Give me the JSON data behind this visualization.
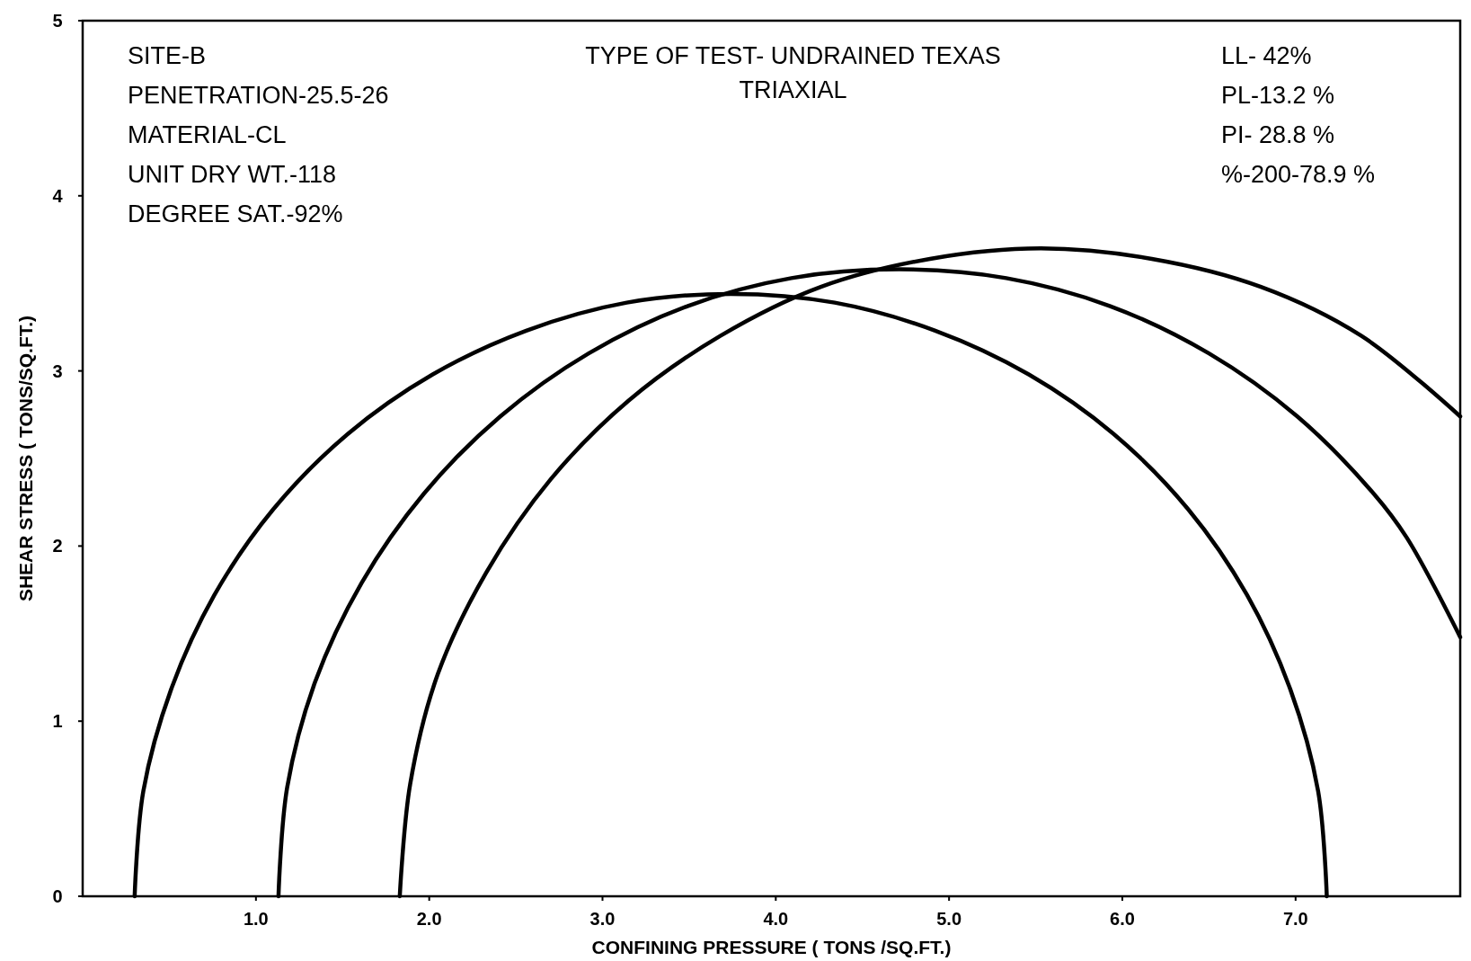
{
  "chart_data": {
    "type": "line",
    "title": "TYPE OF TEST- UNDRAINED TEXAS TRIAXIAL",
    "xlabel": "CONFINING PRESSURE ( TONS /SQ.FT.)",
    "ylabel": "SHEAR STRESS ( TONS/SQ.FT.)",
    "annotations": [
      "SITE-B",
      "PENETRATION-25.5-26",
      "MATERIAL-CL",
      "UNIT DRY WT.-118",
      "DEGREE SAT.-92%",
      "LL- 42%",
      "PL-13.2 %",
      "PI- 28.8 %",
      "%-200-78.9 %"
    ],
    "xlim": [
      0,
      7.95
    ],
    "ylim": [
      0,
      5
    ],
    "xticks": [
      {
        "value": 1,
        "label": "1.0"
      },
      {
        "value": 2,
        "label": "2.0"
      },
      {
        "value": 3,
        "label": "3.0"
      },
      {
        "value": 4,
        "label": "4.0"
      },
      {
        "value": 5,
        "label": "5.0"
      },
      {
        "value": 6,
        "label": "6.0"
      },
      {
        "value": 7,
        "label": "7.0"
      }
    ],
    "yticks": [
      0,
      1,
      2,
      3,
      4,
      5
    ],
    "marker": "none",
    "line_style": "solid",
    "series": [
      {
        "color": "#000000",
        "x": [
          0.3,
          0.35,
          0.51,
          0.76,
          1.1,
          1.53,
          2.02,
          2.56,
          3.14,
          3.74,
          4.34,
          4.92,
          5.46,
          5.95,
          6.38,
          6.72,
          6.97,
          7.13,
          7.18
        ],
        "values": [
          0,
          0.6,
          1.18,
          1.72,
          2.21,
          2.64,
          2.98,
          3.23,
          3.39,
          3.44,
          3.39,
          3.23,
          2.98,
          2.64,
          2.21,
          1.72,
          1.18,
          0.6,
          0
        ]
      },
      {
        "color": "#000000",
        "x": [
          1.13,
          1.18,
          1.34,
          1.61,
          1.97,
          2.41,
          2.92,
          3.49,
          4.09,
          4.71,
          5.33,
          5.93,
          6.5,
          7.01,
          7.45,
          7.64,
          7.95
        ],
        "values": [
          0,
          0.62,
          1.22,
          1.79,
          2.3,
          2.74,
          3.1,
          3.37,
          3.53,
          3.58,
          3.53,
          3.37,
          3.1,
          2.74,
          2.3,
          2.05,
          1.48
        ]
      },
      {
        "color": "#000000",
        "x": [
          1.83,
          1.89,
          2.05,
          2.33,
          2.7,
          3.15,
          3.68,
          4.26,
          4.89,
          5.53,
          6.17,
          6.8,
          7.38,
          7.95
        ],
        "values": [
          0,
          0.64,
          1.27,
          1.85,
          2.38,
          2.83,
          3.2,
          3.48,
          3.64,
          3.7,
          3.64,
          3.48,
          3.2,
          2.74
        ]
      }
    ]
  }
}
